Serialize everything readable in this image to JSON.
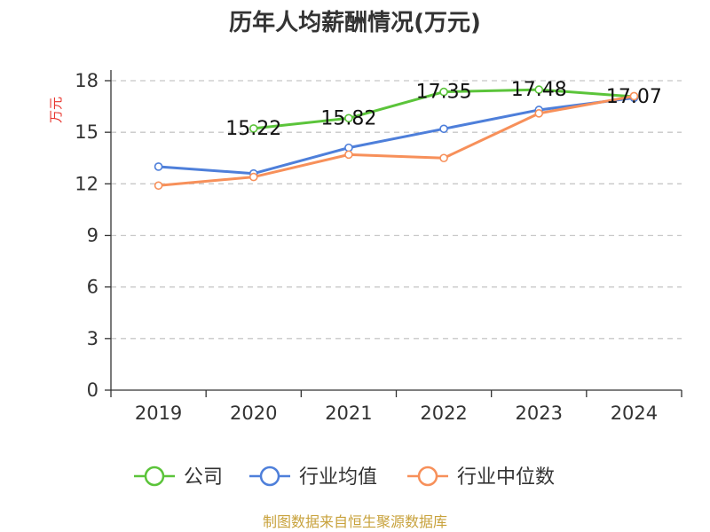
{
  "chart_data": {
    "type": "line",
    "title": "历年人均薪酬情况(万元)",
    "ylabel": "万元",
    "xlabel": "",
    "categories": [
      "2019",
      "2020",
      "2021",
      "2022",
      "2023",
      "2024"
    ],
    "ylim": [
      0,
      18
    ],
    "yticks": [
      0,
      3,
      6,
      9,
      12,
      15,
      18
    ],
    "grid": true,
    "legend_position": "bottom",
    "series": [
      {
        "name": "公司",
        "color": "#5bc43a",
        "values": [
          null,
          15.22,
          15.82,
          17.35,
          17.48,
          17.07
        ],
        "labels": [
          "",
          "15.22",
          "15.82",
          "17.35",
          "17.48",
          "17.07"
        ]
      },
      {
        "name": "行业均值",
        "color": "#4e7fda",
        "values": [
          13.0,
          12.6,
          14.1,
          15.2,
          16.3,
          17.0
        ]
      },
      {
        "name": "行业中位数",
        "color": "#f7905a",
        "values": [
          11.9,
          12.4,
          13.7,
          13.5,
          16.1,
          17.1
        ]
      }
    ],
    "source": "制图数据来自恒生聚源数据库"
  }
}
